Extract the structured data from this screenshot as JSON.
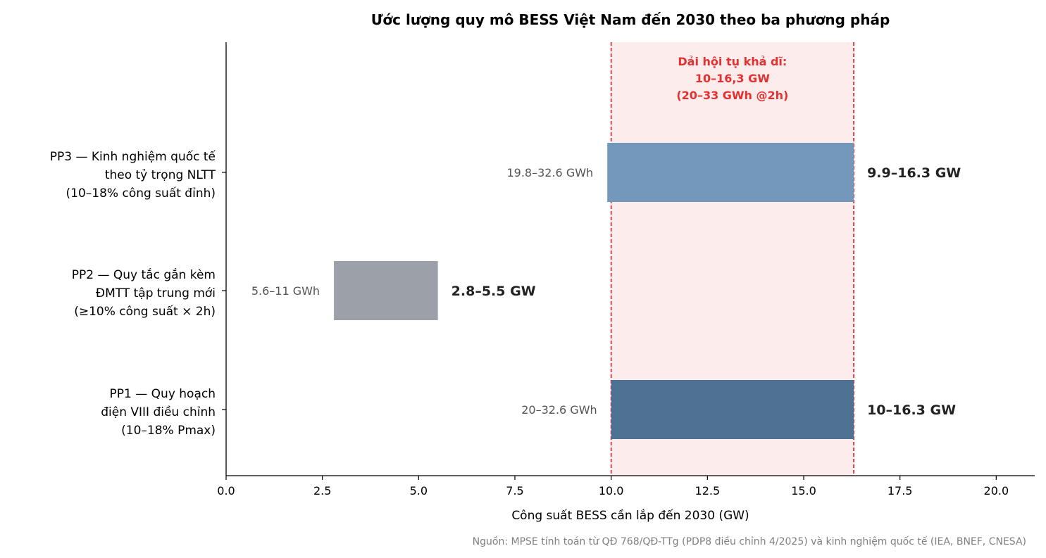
{
  "chart_data": {
    "type": "bar",
    "orientation": "horizontal-range",
    "title": "Ước lượng quy mô BESS Việt Nam đến 2030 theo ba phương pháp",
    "xlabel": "Công suất BESS cần lắp đến 2030 (GW)",
    "xlim": [
      0,
      21
    ],
    "xticks": [
      0.0,
      2.5,
      5.0,
      7.5,
      10.0,
      12.5,
      15.0,
      17.5,
      20.0
    ],
    "xtick_labels": [
      "0.0",
      "2.5",
      "5.0",
      "7.5",
      "10.0",
      "12.5",
      "15.0",
      "17.5",
      "20.0"
    ],
    "grid": false,
    "bars": [
      {
        "label_lines": [
          "PP3 — Kinh nghiệm quốc tế",
          "theo tỷ trọng NLTT",
          "(10–18% công suất đỉnh)"
        ],
        "start": 9.9,
        "end": 16.3,
        "energy_label": "19.8–32.6 GWh",
        "power_label": "9.9–16.3 GW",
        "color": "#7398bb"
      },
      {
        "label_lines": [
          "PP2 — Quy tắc gắn kèm",
          "ĐMTT tập trung mới",
          "(≥10% công suất × 2h)"
        ],
        "start": 2.8,
        "end": 5.5,
        "energy_label": "5.6–11 GWh",
        "power_label": "2.8–5.5 GW",
        "color": "#9ca1a9"
      },
      {
        "label_lines": [
          "PP1 — Quy hoạch",
          "điện VIII điều chỉnh",
          "(10–18% Pmax)"
        ],
        "start": 10.0,
        "end": 16.3,
        "energy_label": "20–32.6 GWh",
        "power_label": "10–16.3 GW",
        "color": "#4f7193"
      }
    ],
    "convergence_band": {
      "start": 10.0,
      "end": 16.3,
      "label_lines": [
        "Dải hội tụ khả dĩ:",
        "10–16,3 GW",
        "(20–33 GWh @2h)"
      ],
      "fill_color": "#fcecec",
      "line_color": "#e53030",
      "text_color": "#e53030"
    }
  },
  "source_note": "Nguồn: MPSE tính toán từ QĐ 768/QĐ-TTg (PDP8 điều chỉnh 4/2025) và kinh nghiệm quốc tế (IEA, BNEF, CNESA)"
}
